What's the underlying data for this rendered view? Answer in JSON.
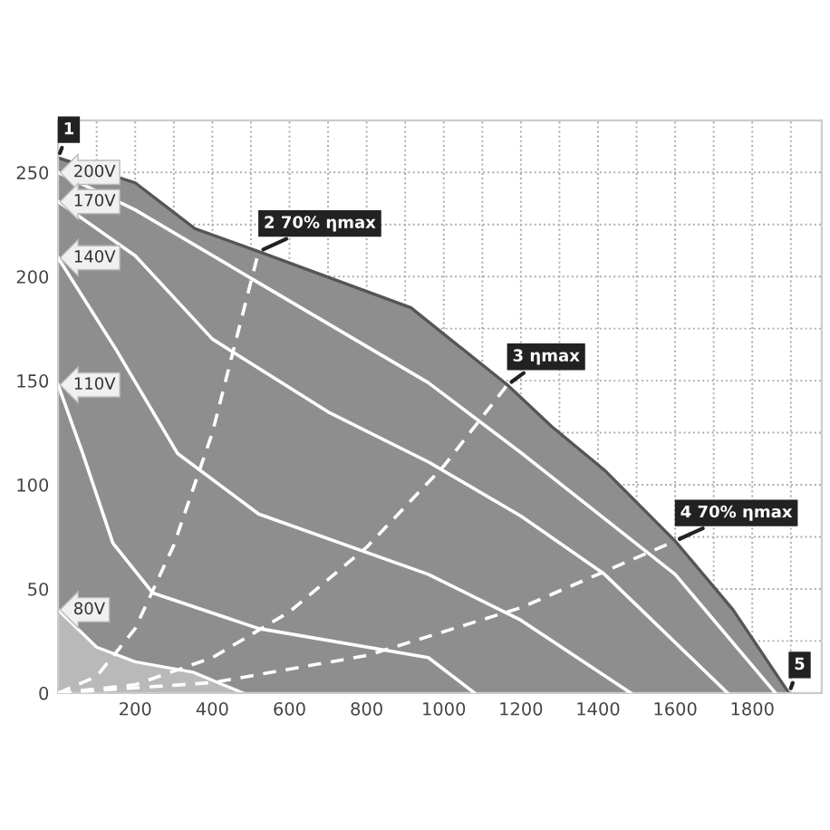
{
  "chart_data": {
    "type": "line",
    "xlim": [
      0,
      1980
    ],
    "ylim": [
      0,
      275
    ],
    "xticks": [
      {
        "value": 100,
        "label": null
      },
      200,
      {
        "value": 300,
        "label": null
      },
      400,
      {
        "value": 500,
        "label": null
      },
      600,
      {
        "value": 700,
        "label": null
      },
      800,
      {
        "value": 900,
        "label": null
      },
      1000,
      {
        "value": 1100,
        "label": null
      },
      1200,
      {
        "value": 1300,
        "label": null
      },
      1400,
      {
        "value": 1500,
        "label": null
      },
      1600,
      {
        "value": 1700,
        "label": null
      },
      1800,
      {
        "value": 1900,
        "label": null
      }
    ],
    "yticks": [
      0,
      {
        "value": 25,
        "label": null
      },
      50,
      {
        "value": 75,
        "label": null
      },
      100,
      {
        "value": 125,
        "label": null
      },
      150,
      {
        "value": 175,
        "label": null
      },
      200,
      {
        "value": 225,
        "label": null
      },
      250
    ],
    "grid": true,
    "line_style": "solid",
    "marker": "none",
    "series": [
      {
        "type": "area",
        "color": "#8e8e8e",
        "x": [
          0,
          200,
          355,
          520,
          915,
          1165,
          1280,
          1417,
          1600,
          1750,
          1895
        ],
        "values": [
          257,
          245,
          223,
          212,
          185,
          148,
          128,
          107,
          73,
          40,
          0
        ]
      },
      {
        "type": "area",
        "name": "80V",
        "color": "#b9b9b9",
        "x": [
          0,
          100,
          200,
          350,
          480
        ],
        "values": [
          40,
          22,
          15,
          10,
          0
        ]
      },
      {
        "name": "200V",
        "color": "#ffffff",
        "x": [
          0,
          200,
          520,
          960,
          1203,
          1600,
          1860
        ],
        "values": [
          250,
          232,
          197,
          149,
          115,
          57,
          0
        ]
      },
      {
        "name": "170V",
        "color": "#ffffff",
        "x": [
          0,
          200,
          400,
          700,
          960,
          1200,
          1417,
          1736
        ],
        "values": [
          236,
          210,
          170,
          135,
          111,
          85,
          57,
          0
        ]
      },
      {
        "name": "140V",
        "color": "#ffffff",
        "x": [
          0,
          150,
          310,
          520,
          960,
          1200,
          1485
        ],
        "values": [
          209,
          165,
          115,
          86,
          57,
          35,
          0
        ]
      },
      {
        "name": "110V",
        "color": "#ffffff",
        "x": [
          0,
          64,
          142,
          246,
          520,
          960,
          1080
        ],
        "values": [
          148,
          115,
          72,
          48,
          31,
          17,
          0
        ]
      },
      {
        "line_style": "dashed",
        "color": "#ffffff",
        "x": [
          0,
          100,
          200,
          300,
          400,
          520
        ],
        "values": [
          0,
          8,
          31,
          71,
          125,
          212
        ]
      },
      {
        "line_style": "dashed",
        "color": "#ffffff",
        "x": [
          0,
          200,
          400,
          600,
          800,
          1000,
          1165
        ],
        "values": [
          0,
          4,
          17,
          39,
          70,
          109,
          148
        ]
      },
      {
        "line_style": "dashed",
        "color": "#ffffff",
        "x": [
          0,
          400,
          800,
          1200,
          1600
        ],
        "values": [
          0,
          5,
          18,
          41,
          73
        ]
      }
    ],
    "annotations": [
      {
        "text": "1",
        "x": 0,
        "y": 257
      },
      {
        "text": "2 70% ηmax",
        "x": 520,
        "y": 212
      },
      {
        "text": "3 ηmax",
        "x": 1165,
        "y": 148
      },
      {
        "text": "4 70% ηmax",
        "x": 1600,
        "y": 73
      },
      {
        "text": "5",
        "x": 1895,
        "y": 0
      }
    ]
  }
}
